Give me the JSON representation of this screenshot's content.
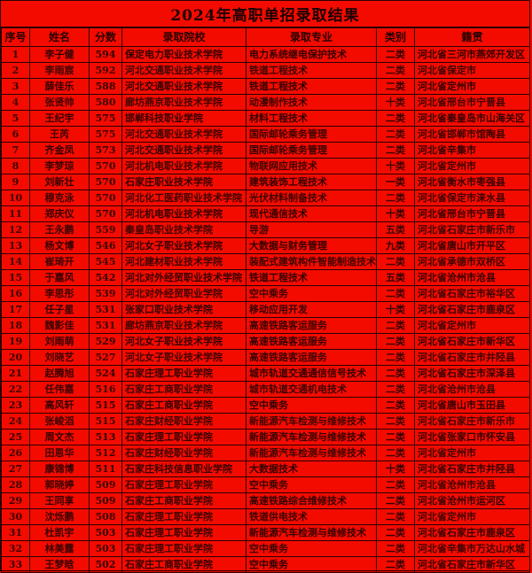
{
  "title": "2024年高职单招录取结果",
  "columns": [
    "序号",
    "姓名",
    "分数",
    "录取院校",
    "录取专业",
    "类别",
    "籍贯"
  ],
  "colors": {
    "background": "#f30b00",
    "text": "#330000",
    "border": "#2a0000"
  },
  "rows": [
    [
      "1",
      "李子健",
      "594",
      "保定电力职业技术学院",
      "电力系统继电保护技术",
      "二类",
      "河北省三河市燕郊开发区"
    ],
    [
      "2",
      "李雨宸",
      "592",
      "河北交通职业技术学院",
      "铁道工程技术",
      "二类",
      "河北省保定市"
    ],
    [
      "3",
      "薛佳乐",
      "588",
      "河北交通职业技术学院",
      "铁道工程技术",
      "二类",
      "河北省定州市"
    ],
    [
      "4",
      "张贤帅",
      "580",
      "廊坊燕京职业技术学院",
      "动漫制作技术",
      "十类",
      "河北省邢台市宁晋县"
    ],
    [
      "5",
      "王纪宇",
      "575",
      "邯郸科技职业学院",
      "材料工程技术",
      "二类",
      "河北省秦皇岛市山海关区"
    ],
    [
      "6",
      "王芮",
      "575",
      "河北交通职业技术学院",
      "国际邮轮乘务管理",
      "二类",
      "河北省邯郸市馆陶县"
    ],
    [
      "7",
      "齐金凤",
      "573",
      "河北交通职业技术学院",
      "国际邮轮乘务管理",
      "二类",
      "河北省辛集市"
    ],
    [
      "8",
      "李梦琼",
      "570",
      "河北机电职业技术学院",
      "物联网应用技术",
      "十类",
      "河北省定州市"
    ],
    [
      "9",
      "刘新壮",
      "570",
      "石家庄职业技术学院",
      "建筑装饰工程技术",
      "一类",
      "河北省衡水市枣强县"
    ],
    [
      "10",
      "穆克泳",
      "570",
      "河北化工医药职业技术学院",
      "光伏材料制备技术",
      "二类",
      "河北省保定市涞水县"
    ],
    [
      "11",
      "郑庆仪",
      "570",
      "河北机电职业技术学院",
      "现代通信技术",
      "十类",
      "河北省邢台市宁晋县"
    ],
    [
      "12",
      "王永鹏",
      "559",
      "秦皇岛职业技术学院",
      "导游",
      "五类",
      "河北省石家庄市新乐市"
    ],
    [
      "13",
      "杨文博",
      "546",
      "河北女子职业技术学院",
      "大数据与财务管理",
      "九类",
      "河北省唐山市开平区"
    ],
    [
      "14",
      "崔琦开",
      "545",
      "河北建材职业技术学院",
      "装配式建筑构件智能制造技术",
      "二类",
      "河北省承德市双桥区"
    ],
    [
      "15",
      "于嘉风",
      "542",
      "河北对外经贸职业技术学院",
      "铁道工程技术",
      "五类",
      "河北省沧州市沧县"
    ],
    [
      "16",
      "李思彤",
      "539",
      "河北对外经贸职业学院",
      "空中乘务",
      "二类",
      "河北省石家庄市裕华区"
    ],
    [
      "17",
      "任子星",
      "531",
      "张家口职业技术学院",
      "移动应用开发",
      "十类",
      "河北省石家庄市鹿泉区"
    ],
    [
      "18",
      "魏影佳",
      "531",
      "廊坊燕京职业技术学院",
      "高速铁路客运服务",
      "二类",
      "河北省定州市"
    ],
    [
      "19",
      "刘雨萌",
      "529",
      "河北女子职业技术学院",
      "高速铁路客运服务",
      "二类",
      "河北省石家庄市新华区"
    ],
    [
      "20",
      "刘晓艺",
      "527",
      "河北女子职业技术学院",
      "高速铁路客运服务",
      "二类",
      "河北省石家庄市井陉县"
    ],
    [
      "21",
      "赵腾旭",
      "524",
      "石家庄理工职业学院",
      "城市轨道交通通信信号技术",
      "二类",
      "河北省石家庄市深泽县"
    ],
    [
      "22",
      "任伟嘉",
      "516",
      "石家庄工商职业学院",
      "城市轨道交通机电技术",
      "二类",
      "河北省沧州市沧县"
    ],
    [
      "23",
      "高风轩",
      "515",
      "石家庄工商职业学院",
      "空中乘务",
      "二类",
      "河北省唐山市玉田县"
    ],
    [
      "24",
      "张峻滔",
      "515",
      "石家庄财经职业学院",
      "新能源汽车检测与维修技术",
      "二类",
      "河北省石家庄市新乐市"
    ],
    [
      "25",
      "周文杰",
      "513",
      "石家庄理工职业学院",
      "新能源汽车检测与维修技术",
      "二类",
      "河北省张家口市怀安县"
    ],
    [
      "26",
      "田恩华",
      "512",
      "石家庄财经职业学院",
      "新能源汽车检测与维修技术",
      "二类",
      "河北省定州市"
    ],
    [
      "27",
      "康锦博",
      "511",
      "石家庄科技信息职业学院",
      "大数据技术",
      "十类",
      "河北省石家庄市井陉县"
    ],
    [
      "28",
      "郭晓婷",
      "509",
      "石家庄理工职业学院",
      "空中乘务",
      "二类",
      "河北省沧州市沧县"
    ],
    [
      "29",
      "王同享",
      "509",
      "石家庄工商职业学院",
      "高速铁路综合维修技术",
      "二类",
      "河北省沧州市运河区"
    ],
    [
      "30",
      "沈烁鹏",
      "508",
      "石家庄理工职业学院",
      "铁道供电技术",
      "二类",
      "河北省定州市"
    ],
    [
      "31",
      "杜凯宇",
      "503",
      "石家庄理工职业学院",
      "新能源汽车检测与维修技术",
      "二类",
      "河北省石家庄市鹿泉区"
    ],
    [
      "32",
      "林美露",
      "503",
      "石家庄理工职业学院",
      "空中乘务",
      "二类",
      "河北省辛集市万达山水城"
    ],
    [
      "33",
      "王梦晗",
      "502",
      "石家庄工商职业学院",
      "空中乘务",
      "二类",
      "河北省石家庄市新华区"
    ]
  ]
}
